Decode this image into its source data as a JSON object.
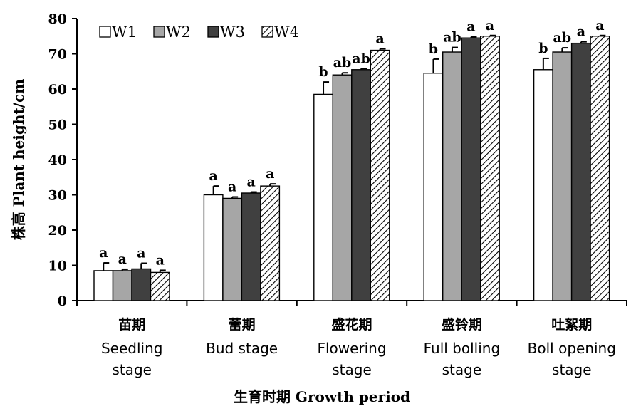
{
  "chart_data": {
    "type": "bar",
    "ylabel": "株高 Plant height/cm",
    "xlabel": "生育时期 Growth period",
    "ylim": [
      0,
      80
    ],
    "yticks": [
      0,
      10,
      20,
      30,
      40,
      50,
      60,
      70,
      80
    ],
    "legend_position": "top-left",
    "categories": [
      {
        "cn": "苗期",
        "en": [
          "Seedling",
          "stage"
        ]
      },
      {
        "cn": "蕾期",
        "en": [
          "Bud stage"
        ]
      },
      {
        "cn": "盛花期",
        "en": [
          "Flowering",
          "stage"
        ]
      },
      {
        "cn": "盛铃期",
        "en": [
          "Full bolling",
          "stage"
        ]
      },
      {
        "cn": "吐絮期",
        "en": [
          "Boll opening",
          "stage"
        ]
      }
    ],
    "series": [
      {
        "name": "W1",
        "fill": "#ffffff",
        "pattern": "none",
        "values": [
          8.5,
          30.0,
          58.5,
          64.5,
          65.5
        ],
        "errors": [
          2.2,
          2.5,
          3.5,
          4.0,
          3.2
        ],
        "labels": [
          "a",
          "a",
          "b",
          "b",
          "b"
        ]
      },
      {
        "name": "W2",
        "fill": "#a6a6a6",
        "pattern": "none",
        "values": [
          8.5,
          29.0,
          64.0,
          70.5,
          70.5
        ],
        "errors": [
          0.4,
          0.4,
          0.6,
          1.3,
          1.2
        ],
        "labels": [
          "a",
          "a",
          "ab",
          "ab",
          "ab"
        ]
      },
      {
        "name": "W3",
        "fill": "#404040",
        "pattern": "none",
        "values": [
          9.0,
          30.5,
          65.5,
          74.5,
          73.0
        ],
        "errors": [
          1.6,
          0.3,
          0.3,
          0.3,
          0.4
        ],
        "labels": [
          "a",
          "a",
          "ab",
          "a",
          "a"
        ]
      },
      {
        "name": "W4",
        "fill": "#ffffff",
        "pattern": "hatch",
        "values": [
          8.0,
          32.5,
          71.0,
          75.0,
          75.0
        ],
        "errors": [
          0.6,
          0.6,
          0.4,
          0.2,
          0.2
        ],
        "labels": [
          "a",
          "a",
          "a",
          "a",
          "a"
        ]
      }
    ]
  }
}
